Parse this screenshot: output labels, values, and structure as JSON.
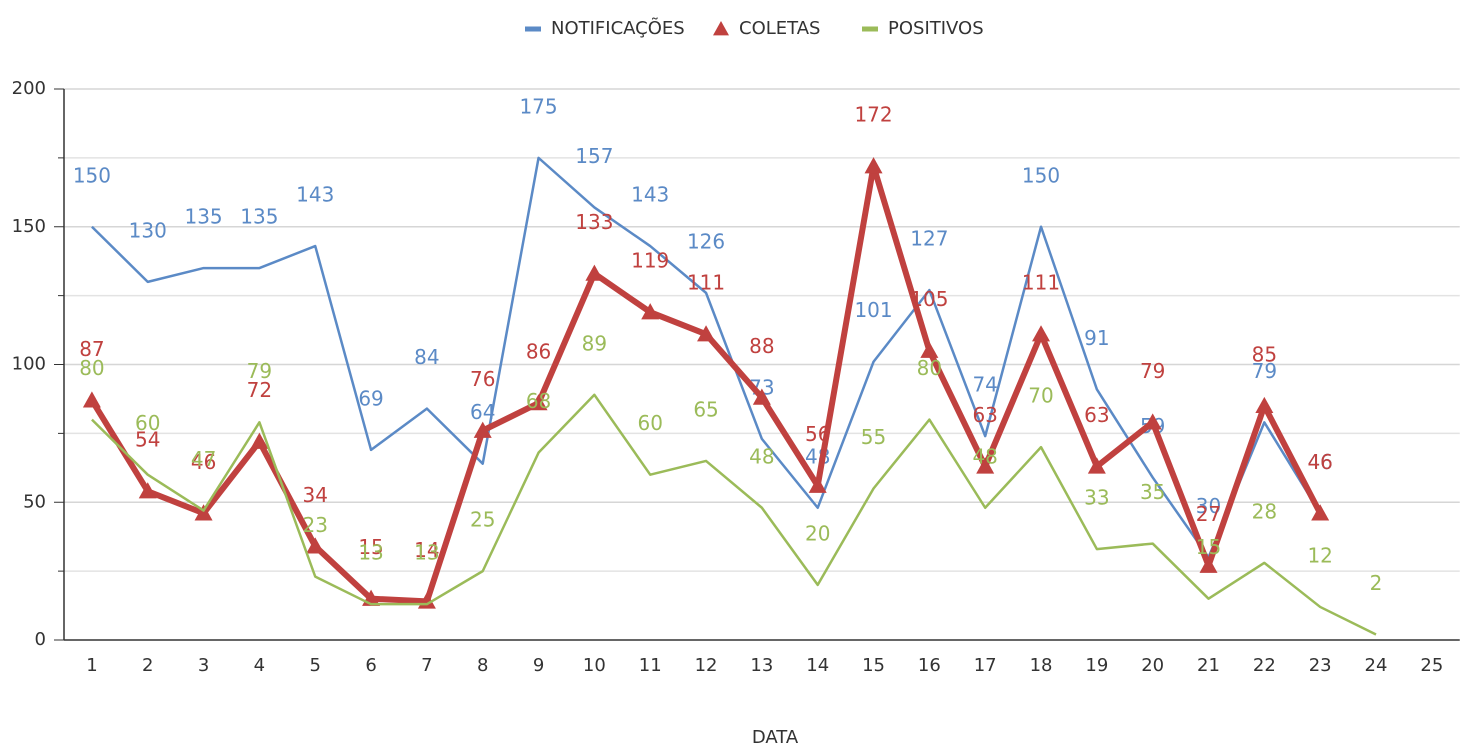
{
  "chart_data": {
    "type": "line",
    "x_label": "DATA",
    "categories": [
      "1",
      "2",
      "3",
      "4",
      "5",
      "6",
      "7",
      "8",
      "9",
      "10",
      "11",
      "12",
      "13",
      "14",
      "15",
      "16",
      "17",
      "18",
      "19",
      "20",
      "21",
      "22",
      "23",
      "24",
      "25"
    ],
    "series": [
      {
        "name": "NOTIFICAÇÕES",
        "color": "#5b8ac6",
        "marker": "none",
        "width": 2.5,
        "values": [
          150,
          130,
          135,
          135,
          143,
          69,
          84,
          64,
          175,
          157,
          143,
          126,
          73,
          48,
          101,
          127,
          74,
          150,
          91,
          59,
          30,
          79,
          46,
          null,
          null
        ]
      },
      {
        "name": "COLETAS",
        "color": "#c0413f",
        "marker": "triangle",
        "width": 6,
        "values": [
          87,
          54,
          46,
          72,
          34,
          15,
          14,
          76,
          86,
          133,
          119,
          111,
          88,
          56,
          172,
          105,
          63,
          111,
          63,
          79,
          27,
          85,
          46,
          null,
          null
        ]
      },
      {
        "name": "POSITIVOS",
        "color": "#9bbb59",
        "marker": "none",
        "width": 2.5,
        "values": [
          80,
          60,
          47,
          79,
          23,
          13,
          13,
          25,
          68,
          89,
          60,
          65,
          48,
          20,
          55,
          80,
          48,
          70,
          33,
          35,
          15,
          28,
          12,
          2,
          null
        ]
      }
    ],
    "ylim": [
      0,
      200
    ],
    "yticks": [
      0,
      50,
      100,
      150,
      200
    ],
    "y_minor_ticks": [
      25,
      75,
      125,
      175
    ],
    "grid": true,
    "legend": "top"
  }
}
